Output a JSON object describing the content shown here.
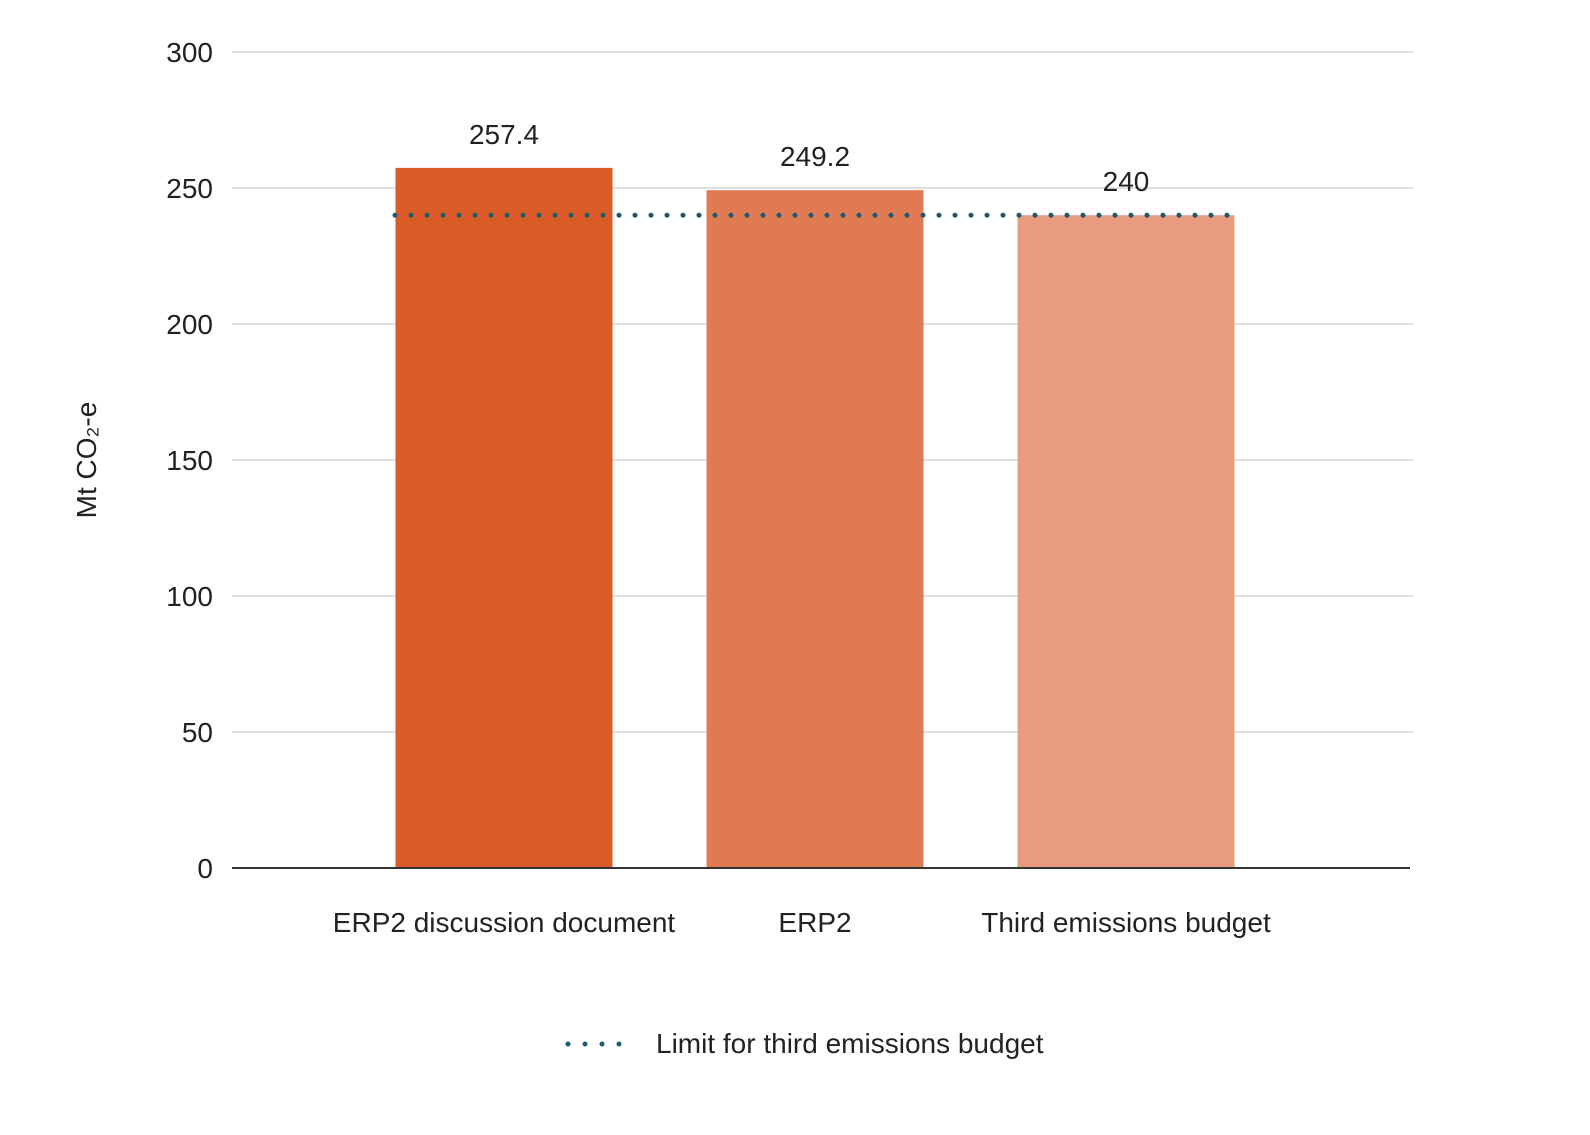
{
  "chart_data": {
    "type": "bar",
    "title": "",
    "xlabel": "",
    "ylabel": "Mt CO₂-e",
    "ylim": [
      0,
      300
    ],
    "yticks": [
      0,
      50,
      100,
      150,
      200,
      250,
      300
    ],
    "grid": true,
    "categories": [
      "ERP2 discussion document",
      "ERP2",
      "Third emissions budget"
    ],
    "values": [
      257.4,
      249.2,
      240
    ],
    "data_labels": [
      "257.4",
      "249.2",
      "240"
    ],
    "bar_colors": [
      "#D95B28",
      "#E07A53",
      "#E89C7D"
    ],
    "reference_line": {
      "name": "Limit for third emissions budget",
      "value": 240,
      "style": "dotted",
      "color": "#1F5A6E"
    },
    "legend_position": "bottom"
  }
}
